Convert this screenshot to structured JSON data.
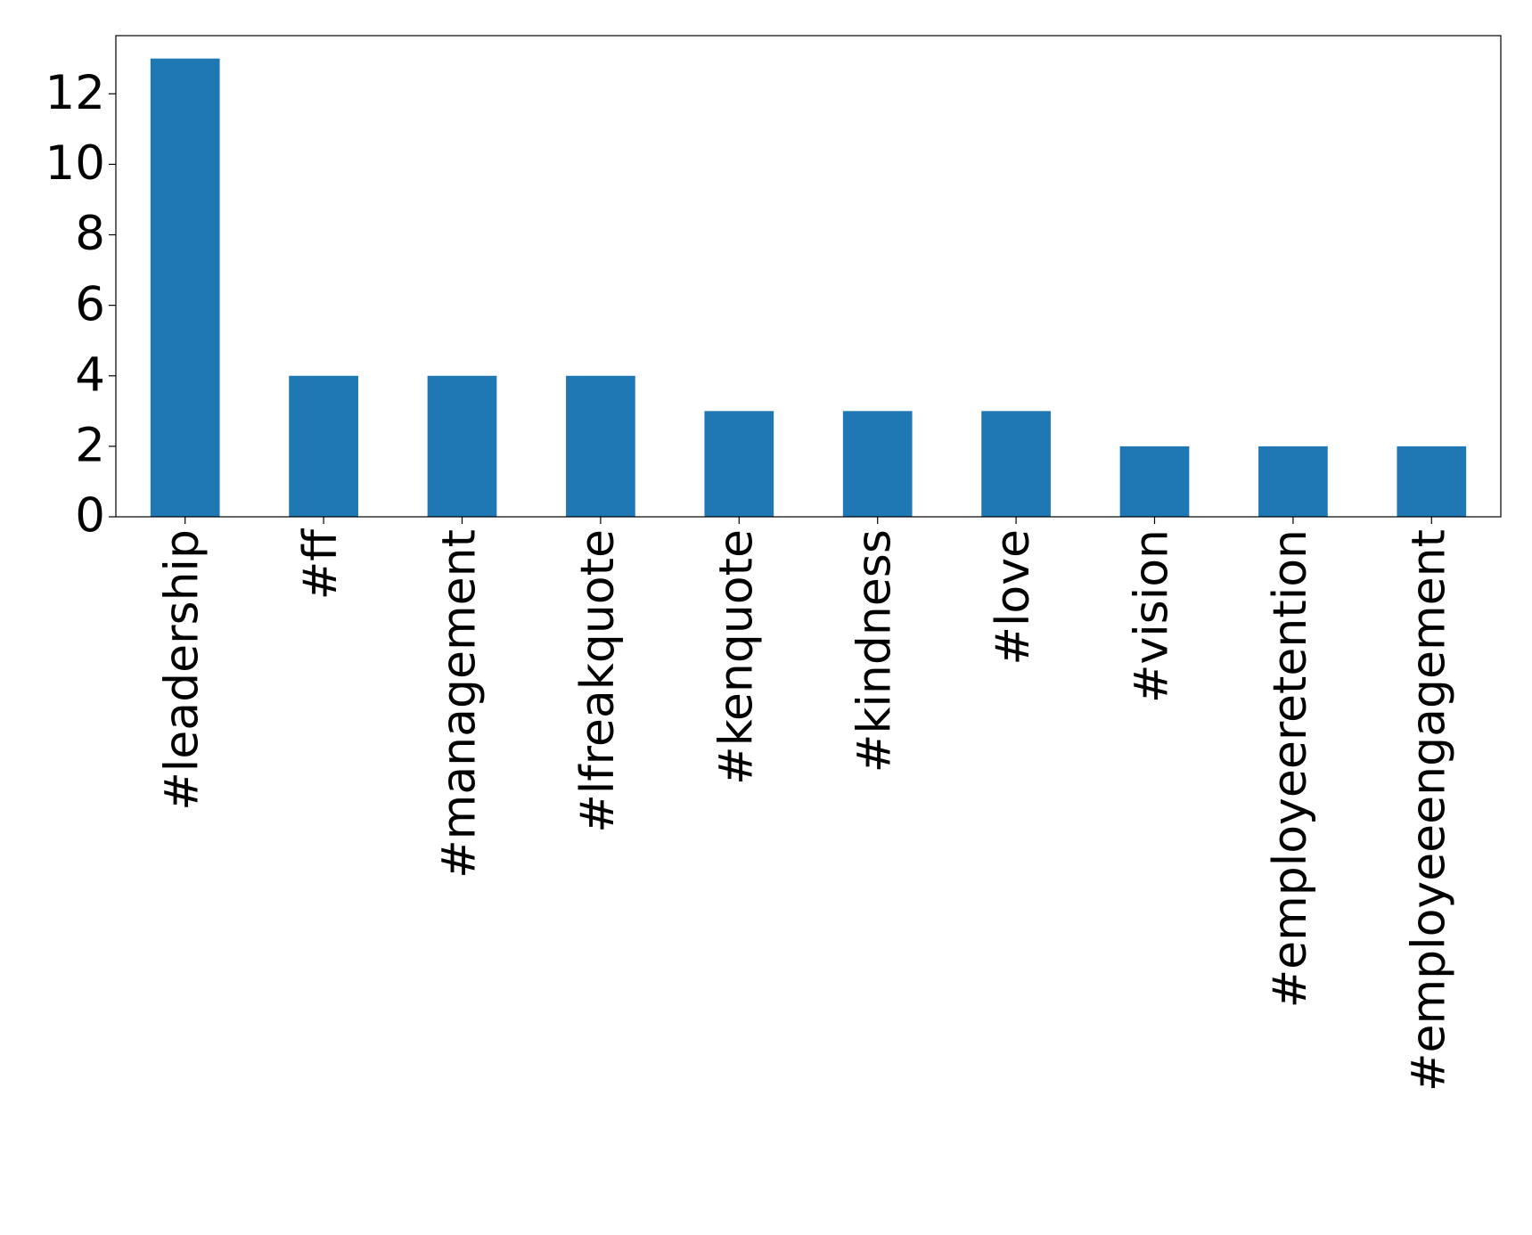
{
  "chart_data": {
    "type": "bar",
    "categories": [
      "#leadership",
      "#ff",
      "#management",
      "#lfreakquote",
      "#kenquote",
      "#kindness",
      "#love",
      "#vision",
      "#employeeretention",
      "#employeeengagement"
    ],
    "values": [
      13,
      4,
      4,
      4,
      3,
      3,
      3,
      2,
      2,
      2
    ],
    "color": "#1f77b4",
    "ylim": [
      0,
      13.65
    ],
    "yticks": [
      0,
      2,
      4,
      6,
      8,
      10,
      12
    ],
    "grid": false
  }
}
